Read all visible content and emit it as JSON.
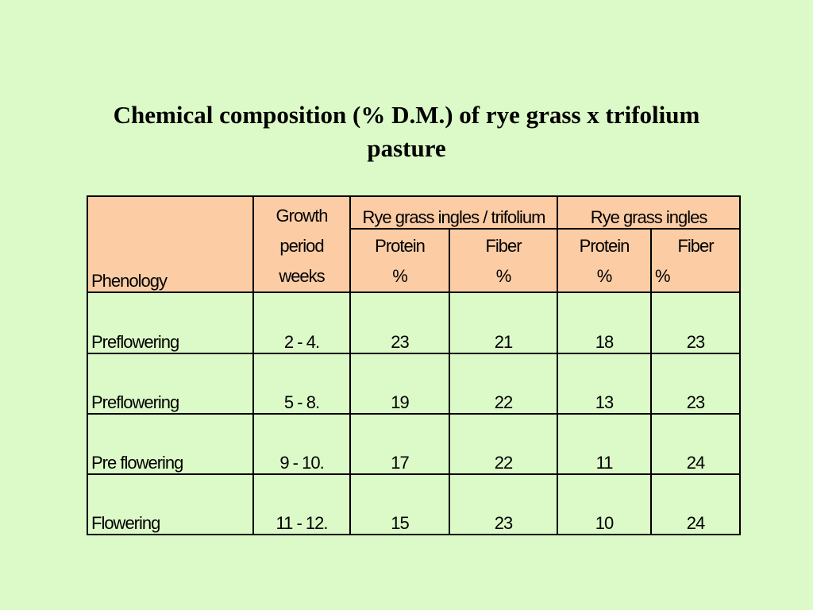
{
  "title": {
    "line1": "Chemical composition  (% D.M.) of rye grass x trifolium",
    "line2": "pasture"
  },
  "table": {
    "header": {
      "phenology": "Phenology",
      "growth_line1": "Growth",
      "growth_line2": "period",
      "growth_line3": "weeks",
      "group1": "Rye grass ingles / trifolium",
      "group2": "Rye grass ingles",
      "protein": "Protein",
      "fiber": "Fiber",
      "percent": "%"
    },
    "rows": [
      {
        "phenology": "Preflowering",
        "period": "2 - 4.",
        "p1": "23",
        "f1": "21",
        "p2": "18",
        "f2": "23"
      },
      {
        "phenology": "Preflowering",
        "period": "5 - 8.",
        "p1": "19",
        "f1": "22",
        "p2": "13",
        "f2": "23"
      },
      {
        "phenology": "Pre flowering",
        "period": "9 - 10.",
        "p1": "17",
        "f1": "22",
        "p2": "11",
        "f2": "24"
      },
      {
        "phenology": "Flowering",
        "period": "11 - 12.",
        "p1": "15",
        "f1": "23",
        "p2": "10",
        "f2": "24"
      }
    ]
  }
}
